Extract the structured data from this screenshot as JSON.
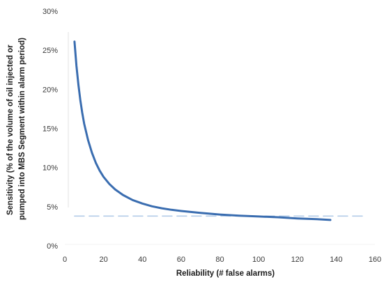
{
  "chart_data": {
    "type": "line",
    "title": "",
    "xlabel": "Reliability (# false alarms)",
    "ylabel_lines": [
      "Sensitivity (% of the volume of oil injected or",
      "pumped into MBS Segment within alarm period)"
    ],
    "xlim": [
      0,
      160
    ],
    "ylim": [
      0,
      30
    ],
    "x_ticks": [
      0,
      20,
      40,
      60,
      80,
      100,
      120,
      140,
      160
    ],
    "x_tick_labels": [
      "0",
      "20",
      "40",
      "60",
      "80",
      "100",
      "120",
      "140",
      "160"
    ],
    "y_ticks": [
      0,
      5,
      10,
      15,
      20,
      25,
      30
    ],
    "y_tick_labels": [
      "0%",
      "5%",
      "10%",
      "15%",
      "20%",
      "25%",
      "30%"
    ],
    "grid": false,
    "legend": "none",
    "series": [
      {
        "color": "#3a6db0",
        "style": "solid",
        "x": [
          5,
          6,
          7,
          8,
          9,
          10,
          12,
          14,
          16,
          18,
          20,
          23,
          26,
          30,
          35,
          40,
          45,
          50,
          55,
          60,
          70,
          80,
          90,
          100,
          110,
          120,
          130,
          137
        ],
        "y": [
          26.1,
          23.0,
          20.6,
          18.6,
          17.0,
          15.6,
          13.5,
          11.9,
          10.6,
          9.6,
          8.8,
          7.9,
          7.2,
          6.5,
          5.85,
          5.4,
          5.05,
          4.8,
          4.6,
          4.45,
          4.2,
          4.0,
          3.85,
          3.75,
          3.65,
          3.5,
          3.4,
          3.3
        ]
      },
      {
        "color": "#b3cce8",
        "style": "dashed",
        "x": [
          5,
          155
        ],
        "y": [
          3.8,
          3.8
        ]
      }
    ]
  }
}
